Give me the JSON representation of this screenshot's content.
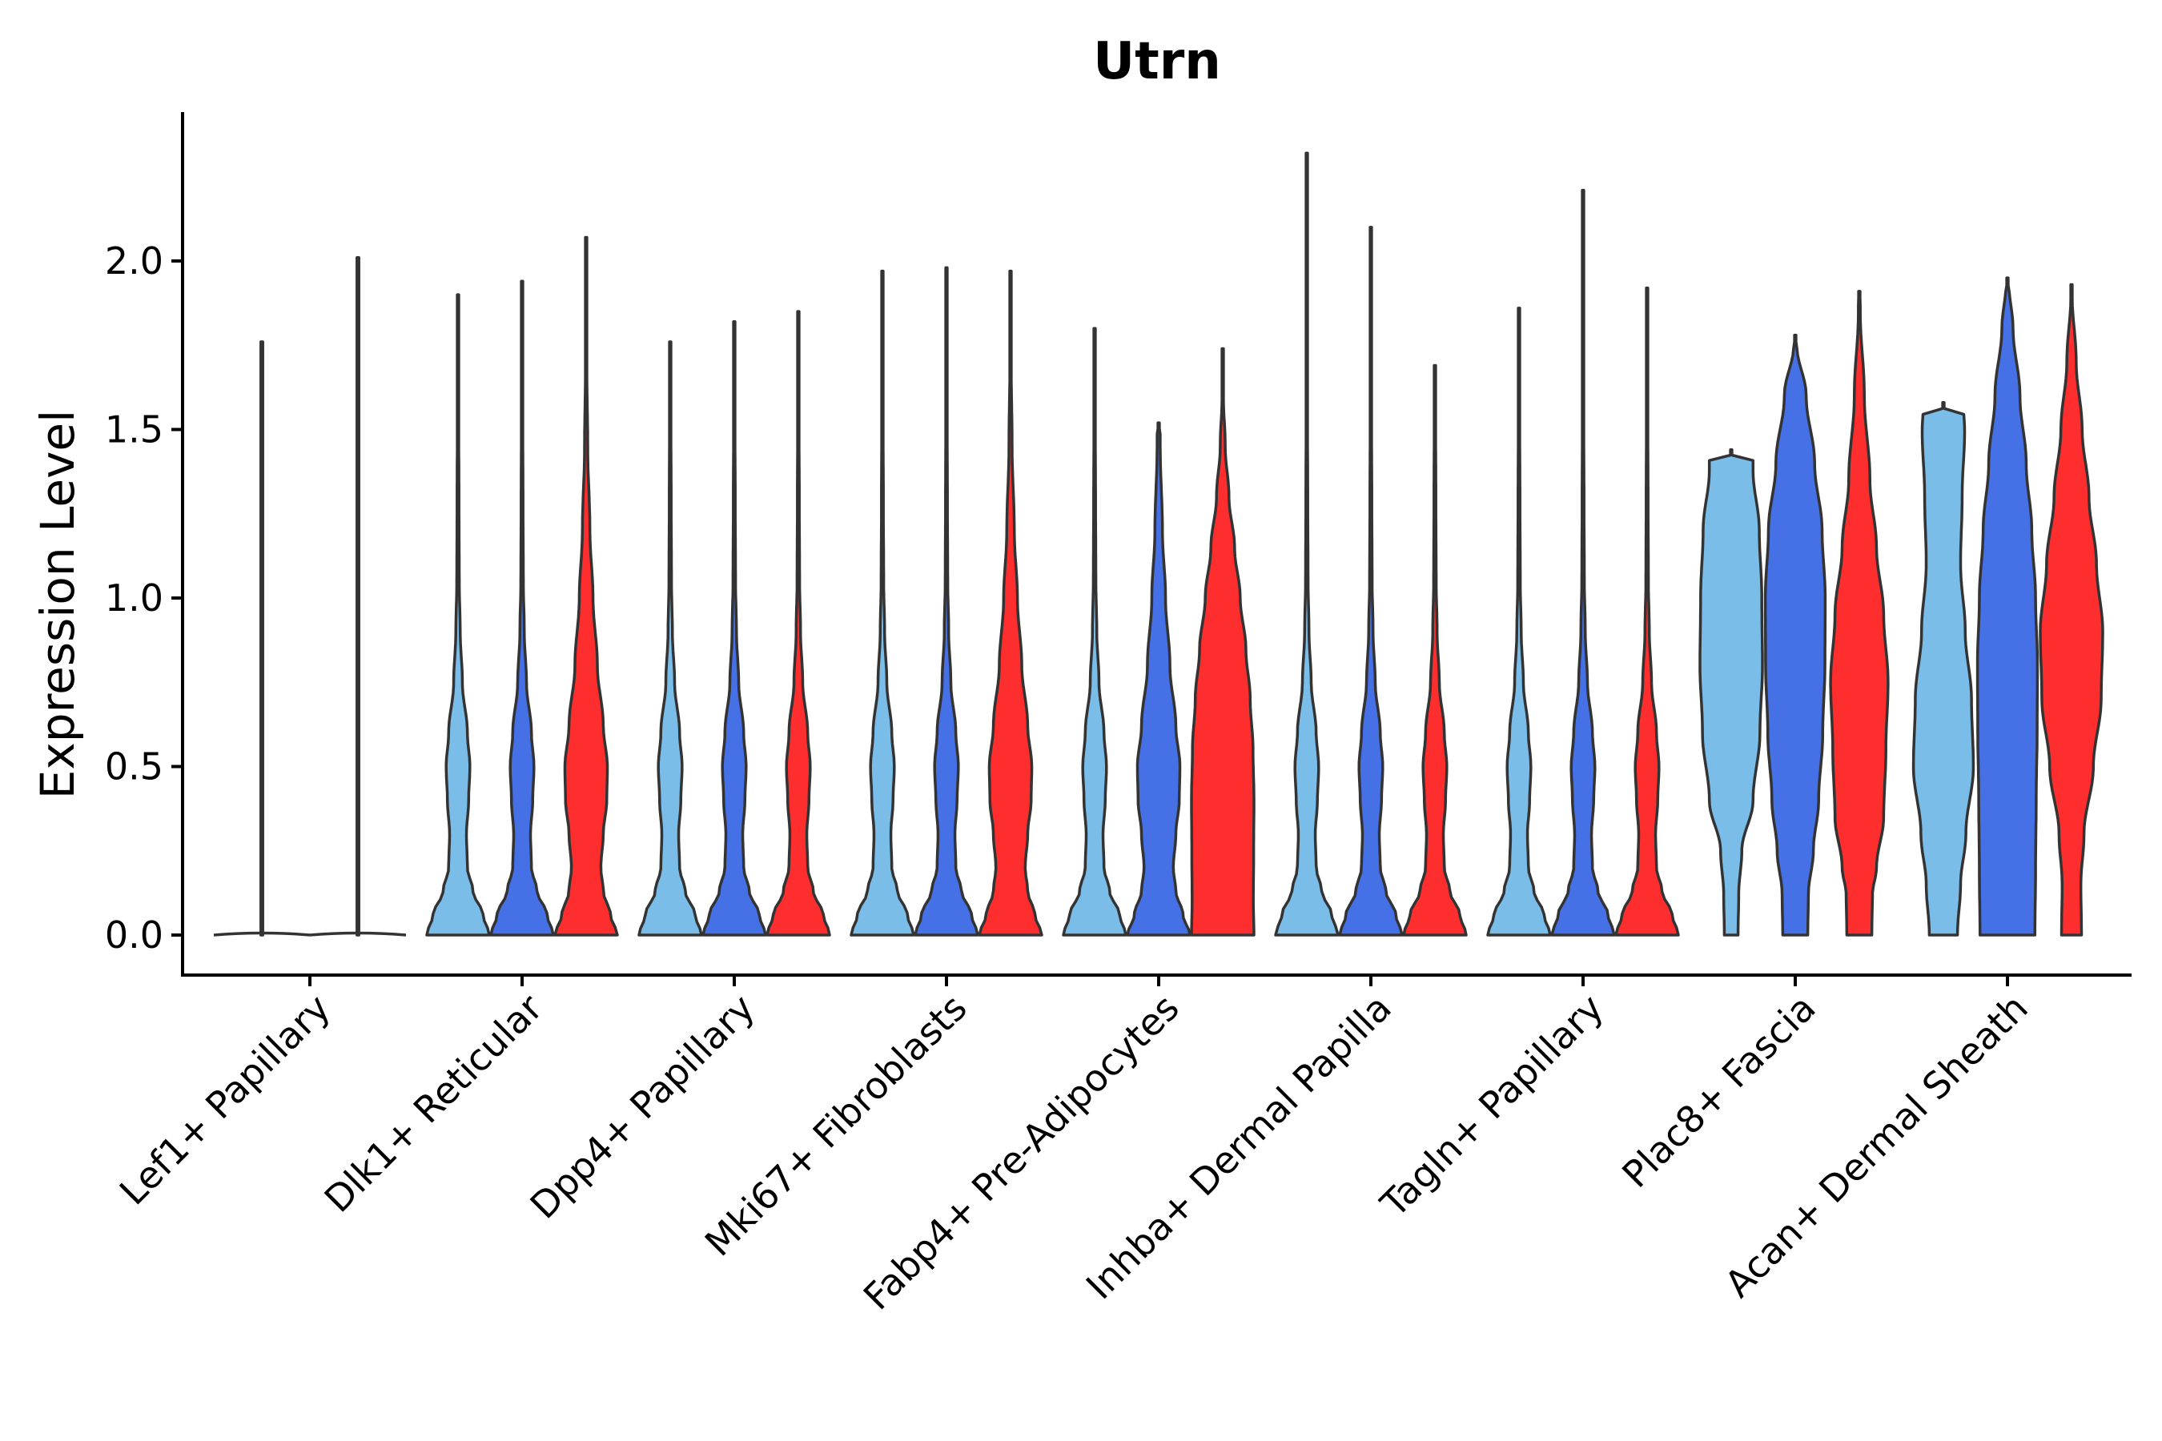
{
  "chart_data": {
    "type": "violin",
    "title": "Utrn",
    "xlabel": "",
    "ylabel": "Expression Level",
    "ylim": [
      -0.12,
      2.42
    ],
    "yticks": [
      0.0,
      0.5,
      1.0,
      1.5,
      2.0
    ],
    "ytick_labels": [
      "0.0",
      "0.5",
      "1.0",
      "1.5",
      "2.0"
    ],
    "categories": [
      "Lef1+ Papillary",
      "Dlk1+ Reticular",
      "Dpp4+ Papillary",
      "Mki67+ Fibroblasts",
      "Fabp4+ Pre-Adipocytes",
      "Inhba+ Dermal Papilla",
      "Tagln+ Papillary",
      "Plac8+ Fascia",
      "Acan+ Dermal Sheath"
    ],
    "series": [
      {
        "name": "group-1",
        "color": "#7bbde9",
        "max": [
          1.76,
          1.9,
          1.76,
          1.97,
          1.8,
          2.32,
          1.86,
          1.44,
          1.58
        ]
      },
      {
        "name": "group-2",
        "color": "#4570e6",
        "max": [
          2.01,
          1.94,
          1.82,
          1.98,
          1.52,
          2.1,
          2.21,
          1.78,
          1.95
        ]
      },
      {
        "name": "group-3",
        "color": "#fe2e2e",
        "max": [
          null,
          2.07,
          1.85,
          1.97,
          1.74,
          1.69,
          1.92,
          1.91,
          1.93
        ]
      }
    ]
  }
}
